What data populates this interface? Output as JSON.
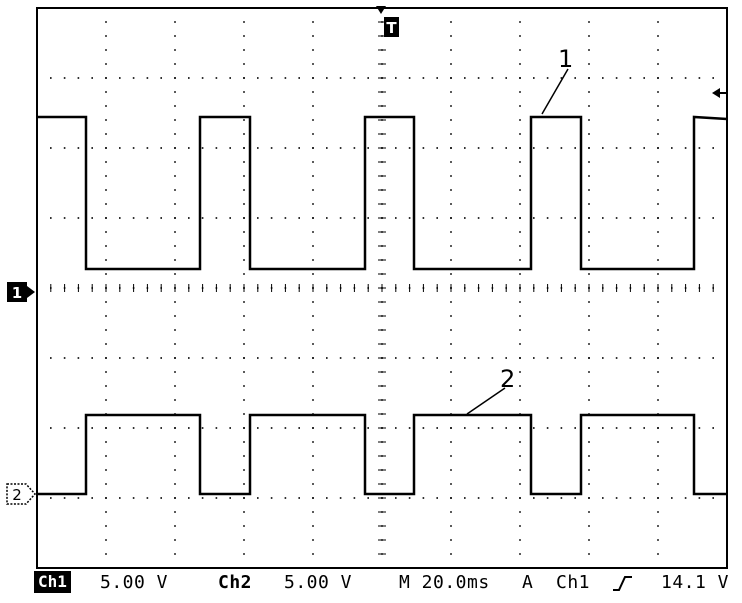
{
  "markers": {
    "trigger": "T",
    "ch1_ground": "1",
    "ch2_ground": "2",
    "trace1_label": "1",
    "trace2_label": "2"
  },
  "status_bar": {
    "ch1_label": "Ch1",
    "ch1_scale": "5.00 V",
    "ch2_label": "Ch2",
    "ch2_scale": "5.00 V",
    "timebase": "M 20.0ms",
    "trigger_mode": "A",
    "trigger_source": "Ch1",
    "trigger_slope_icon": "rising-edge-icon",
    "trigger_level": "14.1 V"
  },
  "colors": {
    "trace": "#000000",
    "background": "#ffffff",
    "grid": "#000000"
  }
}
